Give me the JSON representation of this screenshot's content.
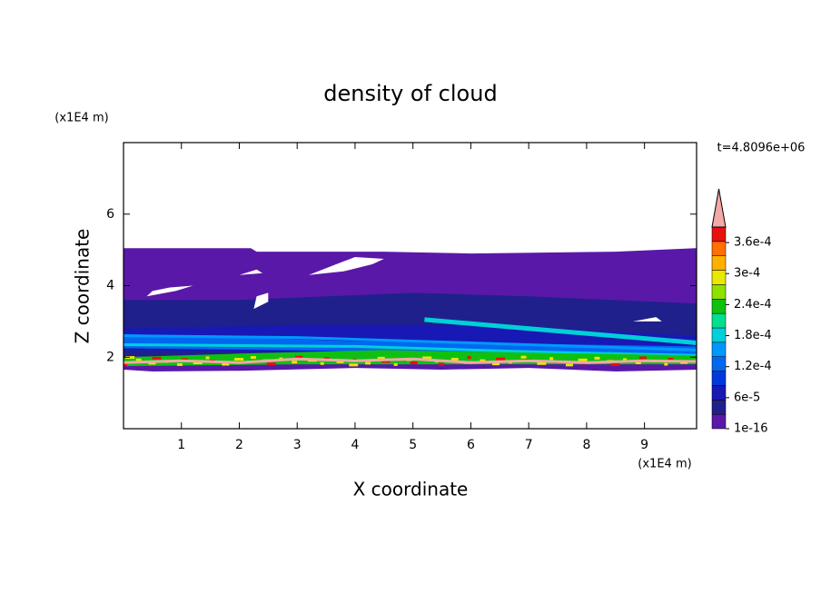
{
  "chart_data": {
    "type": "contour",
    "title": "density of cloud",
    "xlabel": "X coordinate",
    "ylabel": "Z coordinate",
    "x_unit": "(x1E4 m)",
    "y_unit": "(x1E4 m)",
    "time_label": "t=4.8096e+06",
    "xlim": [
      0,
      9.9
    ],
    "ylim": [
      0,
      8
    ],
    "xticks": [
      1,
      2,
      3,
      4,
      5,
      6,
      7,
      8,
      9
    ],
    "yticks": [
      2,
      4,
      6
    ],
    "clim": [
      1e-16,
      0.00039
    ],
    "levels": [
      1e-16,
      {
        "value": 6e-05,
        "label": "6e-5"
      },
      {
        "value": 0.00012,
        "label": "1.2e-4"
      },
      {
        "value": 0.00018,
        "label": "1.8e-4"
      },
      {
        "value": 0.00024,
        "label": "2.4e-4"
      },
      {
        "value": 0.0003,
        "label": "3e-4"
      },
      {
        "value": 0.00036,
        "label": "3.6e-4"
      }
    ],
    "colors": [
      "#5a18a8",
      "#20208c",
      "#1818b4",
      "#0038dc",
      "#0068f0",
      "#0098ff",
      "#00d0d8",
      "#00e090",
      "#10c010",
      "#90e000",
      "#e8e800",
      "#ffb000",
      "#ff7000",
      "#e81010"
    ],
    "extend_color": "#f4a8a8"
  }
}
